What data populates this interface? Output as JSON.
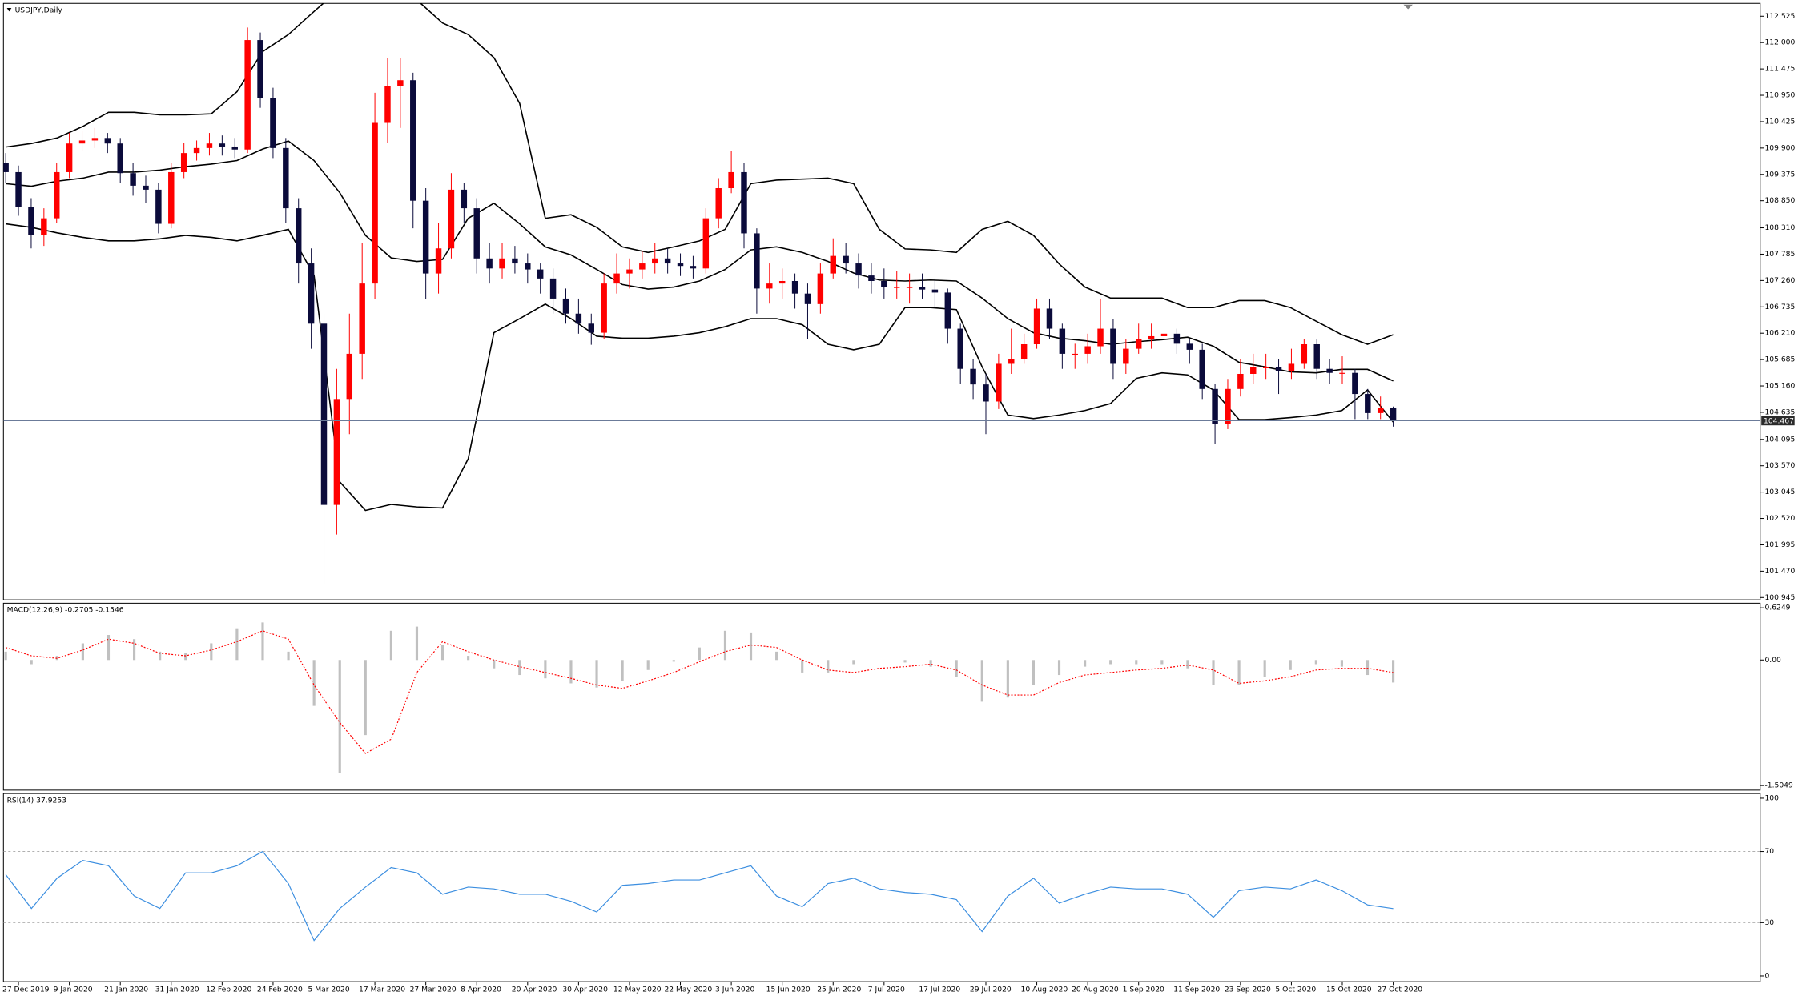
{
  "chart_data": [
    {
      "type": "candlestick",
      "title": "USDJPY,Daily",
      "categories": [
        null,
        "27 Dec 2019",
        null,
        null,
        null,
        "9 Jan 2020",
        null,
        null,
        null,
        "21 Jan 2020",
        null,
        null,
        null,
        "31 Jan 2020",
        null,
        null,
        null,
        "12 Feb 2020",
        null,
        null,
        null,
        "24 Feb 2020",
        null,
        null,
        null,
        "5 Mar 2020",
        null,
        null,
        null,
        "17 Mar 2020",
        null,
        null,
        null,
        "27 Mar 2020",
        null,
        null,
        null,
        "8 Apr 2020",
        null,
        null,
        null,
        "20 Apr 2020",
        null,
        null,
        null,
        "30 Apr 2020",
        null,
        null,
        null,
        "12 May 2020",
        null,
        null,
        null,
        "22 May 2020",
        null,
        null,
        null,
        "3 Jun 2020",
        null,
        null,
        null,
        "15 Jun 2020",
        null,
        null,
        null,
        "25 Jun 2020",
        null,
        null,
        null,
        "7 Jul 2020",
        null,
        null,
        null,
        "17 Jul 2020",
        null,
        null,
        null,
        "29 Jul 2020",
        null,
        null,
        null,
        "10 Aug 2020",
        null,
        null,
        null,
        "20 Aug 2020",
        null,
        null,
        null,
        "1 Sep 2020",
        null,
        null,
        null,
        "11 Sep 2020",
        null,
        null,
        null,
        "23 Sep 2020",
        null,
        null,
        null,
        "5 Oct 2020",
        null,
        null,
        null,
        "15 Oct 2020",
        null,
        null,
        null,
        "27 Oct 2020"
      ],
      "open": [
        109.6,
        109.42,
        108.73,
        108.16,
        108.5,
        109.42,
        109.99,
        110.05,
        110.1,
        109.99,
        109.4,
        109.15,
        109.07,
        108.39,
        109.42,
        109.8,
        109.9,
        109.99,
        109.93,
        109.87,
        112.05,
        110.9,
        109.9,
        108.7,
        107.6,
        106.4,
        102.79,
        104.9,
        105.8,
        107.2,
        110.4,
        111.13,
        111.25,
        108.85,
        107.4,
        107.9,
        109.07,
        108.7,
        107.7,
        107.5,
        107.7,
        107.6,
        107.48,
        107.3,
        106.9,
        106.6,
        106.4,
        106.22,
        107.2,
        107.4,
        107.48,
        107.6,
        107.7,
        107.6,
        107.55,
        107.5,
        108.5,
        109.1,
        109.42,
        108.2,
        107.1,
        107.2,
        107.25,
        107.0,
        106.79,
        107.4,
        107.75,
        107.6,
        107.36,
        107.25,
        107.13,
        107.13,
        107.13,
        107.08,
        107.02,
        106.3,
        105.5,
        105.19,
        104.85,
        105.6,
        105.7,
        105.99,
        106.7,
        106.3,
        105.8,
        105.8,
        105.95,
        106.3,
        105.6,
        105.9,
        106.1,
        106.15,
        106.2,
        106.0,
        105.88,
        105.1,
        104.4,
        105.1,
        105.4,
        105.53,
        105.53,
        105.45,
        105.6,
        105.99,
        105.5,
        105.42,
        105.42,
        105.0,
        104.62,
        104.73
      ],
      "high": [
        109.8,
        109.55,
        108.9,
        108.7,
        109.6,
        110.2,
        110.25,
        110.3,
        110.2,
        110.1,
        109.6,
        109.35,
        109.2,
        109.6,
        110.0,
        110.05,
        110.2,
        110.15,
        110.1,
        112.3,
        112.2,
        111.1,
        110.1,
        108.9,
        107.9,
        106.6,
        105.5,
        106.6,
        108.0,
        111.0,
        111.7,
        111.7,
        111.4,
        109.1,
        108.4,
        109.4,
        109.2,
        108.9,
        108.0,
        108.0,
        107.95,
        107.8,
        107.6,
        107.5,
        107.1,
        106.9,
        106.6,
        107.4,
        107.8,
        107.7,
        107.85,
        108.0,
        107.9,
        107.8,
        107.75,
        108.7,
        109.3,
        109.85,
        109.6,
        108.3,
        107.6,
        107.5,
        107.4,
        107.2,
        107.6,
        108.1,
        108.0,
        107.8,
        107.6,
        107.5,
        107.45,
        107.4,
        107.4,
        107.3,
        107.1,
        106.4,
        105.7,
        105.4,
        105.8,
        106.3,
        106.2,
        106.9,
        106.9,
        106.4,
        106.0,
        106.2,
        106.9,
        106.5,
        106.1,
        106.4,
        106.4,
        106.35,
        106.3,
        106.1,
        106.0,
        105.2,
        105.3,
        105.7,
        105.8,
        105.8,
        105.7,
        105.9,
        106.1,
        106.1,
        105.7,
        105.75,
        105.5,
        105.1,
        104.95,
        104.75
      ],
      "low": [
        109.2,
        108.55,
        107.9,
        107.95,
        108.4,
        109.3,
        109.85,
        109.9,
        109.8,
        109.2,
        108.95,
        108.8,
        108.2,
        108.3,
        109.3,
        109.65,
        109.75,
        109.75,
        109.7,
        109.8,
        110.7,
        109.7,
        108.4,
        107.2,
        105.9,
        101.2,
        102.2,
        104.2,
        105.3,
        106.9,
        110.0,
        110.3,
        108.3,
        106.9,
        107.0,
        107.7,
        108.4,
        107.4,
        107.2,
        107.3,
        107.4,
        107.2,
        107.0,
        106.6,
        106.4,
        106.2,
        105.98,
        106.1,
        107.0,
        107.1,
        107.3,
        107.4,
        107.4,
        107.35,
        107.3,
        107.4,
        108.3,
        109.0,
        107.9,
        106.6,
        106.8,
        106.9,
        106.7,
        106.1,
        106.6,
        107.3,
        107.4,
        107.1,
        107.0,
        106.9,
        106.9,
        106.8,
        106.9,
        106.7,
        106.0,
        105.2,
        104.9,
        104.2,
        104.7,
        105.4,
        105.6,
        105.9,
        106.1,
        105.5,
        105.5,
        105.6,
        105.8,
        105.3,
        105.4,
        105.8,
        105.9,
        105.95,
        105.8,
        105.6,
        104.9,
        104.0,
        104.3,
        104.95,
        105.2,
        105.3,
        105.0,
        105.3,
        105.5,
        105.3,
        105.2,
        105.2,
        104.5,
        104.5,
        104.5,
        104.35
      ],
      "close": [
        109.42,
        108.73,
        108.16,
        108.5,
        109.42,
        109.99,
        110.05,
        110.1,
        109.99,
        109.4,
        109.15,
        109.07,
        108.39,
        109.42,
        109.8,
        109.9,
        109.99,
        109.93,
        109.87,
        112.05,
        110.9,
        109.9,
        108.7,
        107.6,
        106.4,
        102.79,
        104.9,
        105.8,
        107.2,
        110.4,
        111.13,
        111.25,
        108.85,
        107.4,
        107.9,
        109.07,
        108.7,
        107.7,
        107.5,
        107.7,
        107.6,
        107.48,
        107.3,
        106.9,
        106.6,
        106.4,
        106.22,
        107.2,
        107.4,
        107.48,
        107.6,
        107.7,
        107.6,
        107.55,
        107.5,
        108.5,
        109.1,
        109.42,
        108.2,
        107.1,
        107.2,
        107.25,
        107.0,
        106.79,
        107.4,
        107.75,
        107.6,
        107.36,
        107.25,
        107.13,
        107.13,
        107.13,
        107.08,
        107.02,
        106.3,
        105.5,
        105.19,
        104.85,
        105.6,
        105.7,
        105.99,
        106.7,
        106.3,
        105.8,
        105.8,
        105.95,
        106.3,
        105.6,
        105.9,
        106.1,
        106.15,
        106.2,
        106.0,
        105.88,
        105.1,
        104.4,
        105.1,
        105.4,
        105.53,
        105.53,
        105.45,
        105.6,
        105.99,
        105.5,
        105.42,
        105.42,
        105.0,
        104.62,
        104.73,
        104.467
      ],
      "up_color": "#ff0000",
      "down_color": "#0b0b3b",
      "bands": {
        "color": "#000000",
        "upper": [
          109.92,
          109.99,
          110.1,
          110.33,
          110.61,
          110.61,
          110.56,
          110.56,
          110.58,
          111.02,
          111.82,
          112.16,
          112.62,
          113.07,
          113.3,
          113.07,
          112.85,
          112.39,
          112.16,
          111.7,
          110.79,
          108.5,
          108.57,
          108.32,
          107.93,
          107.82,
          107.93,
          108.05,
          108.28,
          109.19,
          109.26,
          109.28,
          109.3,
          109.19,
          108.28,
          107.89,
          107.87,
          107.82,
          108.28,
          108.44,
          108.16,
          107.59,
          107.13,
          106.91,
          106.91,
          106.91,
          106.72,
          106.72,
          106.86,
          106.86,
          106.72,
          106.45,
          106.18,
          105.99,
          106.18
        ],
        "middle": [
          109.19,
          109.14,
          109.24,
          109.3,
          109.42,
          109.42,
          109.46,
          109.53,
          109.58,
          109.65,
          109.88,
          110.04,
          109.65,
          109.01,
          108.16,
          107.71,
          107.64,
          107.68,
          108.5,
          108.8,
          108.39,
          107.93,
          107.77,
          107.48,
          107.18,
          107.09,
          107.13,
          107.25,
          107.48,
          107.87,
          107.93,
          107.82,
          107.64,
          107.41,
          107.27,
          107.25,
          107.27,
          107.25,
          106.91,
          106.5,
          106.22,
          106.11,
          106.06,
          105.99,
          106.04,
          106.08,
          106.13,
          105.95,
          105.63,
          105.54,
          105.44,
          105.42,
          105.49,
          105.49,
          105.26
        ],
        "lower": [
          108.39,
          108.32,
          108.21,
          108.12,
          108.05,
          108.05,
          108.09,
          108.16,
          108.12,
          108.05,
          108.16,
          108.28,
          107.36,
          103.25,
          102.68,
          102.8,
          102.75,
          102.73,
          103.71,
          106.22,
          106.5,
          106.79,
          106.5,
          106.15,
          106.11,
          106.11,
          106.15,
          106.22,
          106.34,
          106.5,
          106.5,
          106.38,
          105.99,
          105.88,
          105.99,
          106.72,
          106.72,
          106.68,
          105.54,
          104.58,
          104.51,
          104.58,
          104.67,
          104.81,
          105.31,
          105.42,
          105.38,
          105.08,
          104.49,
          104.49,
          104.53,
          104.58,
          104.67,
          105.08,
          104.44
        ]
      },
      "current_price": {
        "value": 104.467,
        "color": "#6b7b99"
      },
      "ylim": [
        100.9,
        112.78
      ],
      "yticks": [
        112.525,
        {
          "value": 112,
          "label": "112.000"
        },
        111.475,
        {
          "value": 110.95,
          "label": "110.950"
        },
        110.425,
        {
          "value": 109.9,
          "label": "109.900"
        },
        109.375,
        {
          "value": 108.85,
          "label": "108.850"
        },
        {
          "value": 108.31,
          "label": "108.310"
        },
        107.785,
        {
          "value": 107.26,
          "label": "107.260"
        },
        106.735,
        {
          "value": 106.21,
          "label": "106.210"
        },
        105.685,
        {
          "value": 105.16,
          "label": "105.160"
        },
        104.635,
        104.095,
        {
          "value": 103.57,
          "label": "103.570"
        },
        103.045,
        {
          "value": 102.52,
          "label": "102.520"
        },
        101.995,
        {
          "value": 101.47,
          "label": "101.470"
        },
        100.945
      ]
    },
    {
      "type": "macd",
      "title": "MACD(12,26,9) -0.2705 -0.1546",
      "histogram": {
        "color": "#c0c0c0",
        "values": [
          0.1,
          -0.05,
          0.05,
          0.2,
          0.3,
          0.25,
          0.1,
          0.08,
          0.2,
          0.38,
          0.45,
          0.1,
          -0.55,
          -1.35,
          -0.9,
          0.35,
          0.4,
          0.18,
          0.05,
          -0.1,
          -0.18,
          -0.22,
          -0.28,
          -0.33,
          -0.25,
          -0.12,
          -0.02,
          0.15,
          0.35,
          0.33,
          0.1,
          -0.15,
          -0.15,
          -0.05,
          0,
          -0.03,
          -0.08,
          -0.2,
          -0.5,
          -0.45,
          -0.3,
          -0.18,
          -0.08,
          -0.05,
          -0.05,
          -0.05,
          -0.1,
          -0.3,
          -0.3,
          -0.2,
          -0.12,
          -0.05,
          -0.08,
          -0.18,
          -0.27
        ]
      },
      "signal": {
        "color": "#ff0000",
        "values": [
          0.15,
          0.05,
          0.02,
          0.12,
          0.25,
          0.2,
          0.08,
          0.05,
          0.12,
          0.22,
          0.35,
          0.25,
          -0.3,
          -0.75,
          -1.12,
          -0.95,
          -0.15,
          0.22,
          0.1,
          0.0,
          -0.08,
          -0.15,
          -0.22,
          -0.3,
          -0.34,
          -0.25,
          -0.15,
          -0.02,
          0.1,
          0.18,
          0.15,
          0.0,
          -0.12,
          -0.15,
          -0.1,
          -0.08,
          -0.05,
          -0.12,
          -0.3,
          -0.42,
          -0.42,
          -0.27,
          -0.18,
          -0.15,
          -0.12,
          -0.1,
          -0.06,
          -0.12,
          -0.28,
          -0.25,
          -0.2,
          -0.12,
          -0.1,
          -0.1,
          -0.15
        ]
      },
      "ylim": [
        -1.56,
        0.68
      ],
      "yticks": [
        0.6249,
        {
          "value": 0,
          "label": "0.00"
        },
        -1.5049
      ]
    },
    {
      "type": "rsi",
      "title": "RSI(14) 37.9253",
      "color": "#3d8fe0",
      "values": [
        57,
        38,
        55,
        65,
        62,
        45,
        38,
        58,
        58,
        62,
        70,
        52,
        20,
        38,
        50,
        61,
        58,
        46,
        50,
        49,
        46,
        46,
        42,
        36,
        51,
        52,
        54,
        54,
        58,
        62,
        45,
        39,
        52,
        55,
        49,
        47,
        46,
        43,
        25,
        45,
        55,
        41,
        46,
        50,
        49,
        49,
        46,
        33,
        48,
        50,
        49,
        54,
        48,
        40,
        37.9
      ],
      "levels": [
        70,
        30
      ],
      "ylim": [
        -3.2,
        102.6
      ],
      "yticks": [
        100,
        70,
        30,
        0
      ]
    }
  ]
}
